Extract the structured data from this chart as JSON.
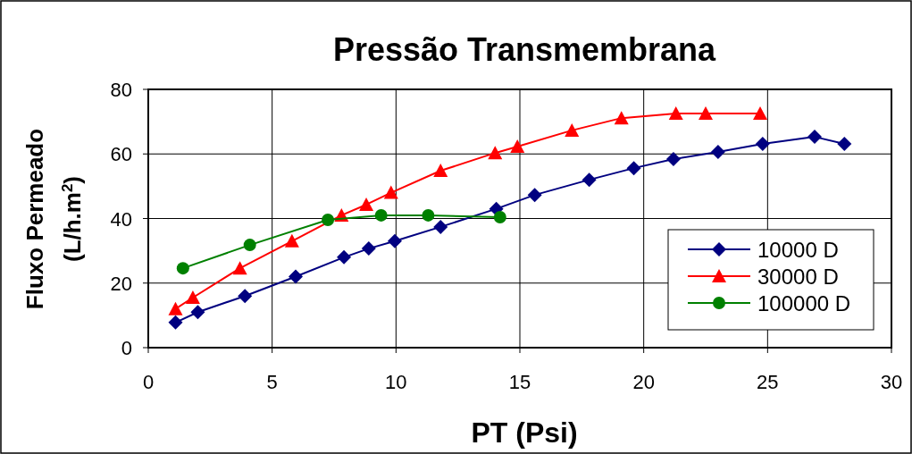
{
  "chart_data": {
    "type": "line",
    "title": "Pressão Transmembrana",
    "xlabel": "PT (Psi)",
    "ylabel": "Fluxo Permeado (L/h.m$^{2}$)",
    "xlim": [
      0,
      30
    ],
    "xticks": [
      0,
      5,
      10,
      15,
      20,
      25,
      30
    ],
    "ylim": [
      0,
      80
    ],
    "yticks": [
      0,
      20,
      40,
      60,
      80
    ],
    "grid": true,
    "legend": "bottom right",
    "series": [
      {
        "name": "10000 D",
        "color": "#000080",
        "marker": "diamond",
        "x": [
          1.1,
          2.0,
          3.9,
          5.95,
          7.9,
          8.9,
          9.95,
          11.8,
          14.05,
          15.6,
          17.8,
          19.6,
          21.2,
          23.0,
          24.8,
          26.9,
          28.1
        ],
        "values": [
          7.8,
          11,
          16,
          22,
          28,
          30.7,
          33,
          37.4,
          43,
          47.3,
          52,
          55.6,
          58.4,
          60.6,
          63.1,
          65.3,
          63.1
        ]
      },
      {
        "name": "30000 D",
        "color": "#ff0000",
        "marker": "triangle",
        "x": [
          1.1,
          1.8,
          3.7,
          5.8,
          7.8,
          8.8,
          9.8,
          11.8,
          14.0,
          14.9,
          17.1,
          19.1,
          21.3,
          22.5,
          24.7
        ],
        "values": [
          12,
          15.5,
          24.6,
          33,
          41,
          44.3,
          48,
          54.8,
          60.3,
          62.3,
          67.3,
          71.1,
          72.5,
          72.5,
          72.5
        ]
      },
      {
        "name": "100000 D",
        "color": "#008000",
        "marker": "circle",
        "x": [
          1.4,
          4.1,
          7.25,
          9.4,
          11.3,
          14.2
        ],
        "values": [
          24.6,
          31.8,
          39.6,
          41,
          41,
          40.4
        ]
      }
    ]
  }
}
